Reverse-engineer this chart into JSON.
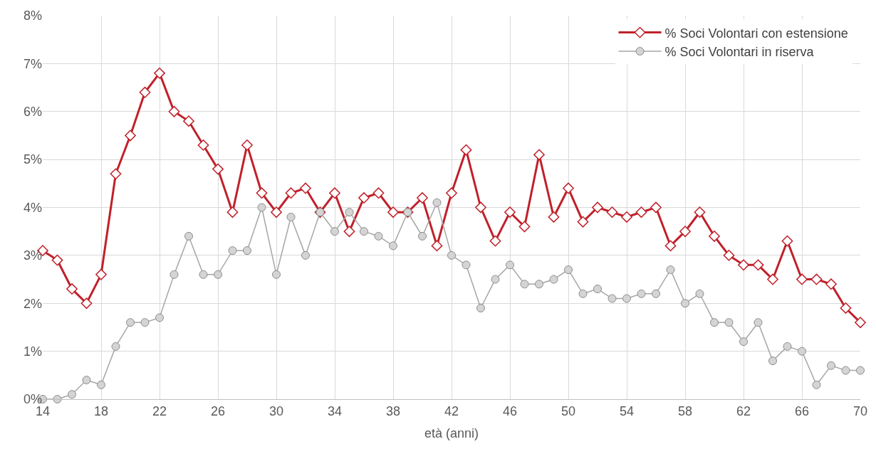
{
  "chart_data": {
    "type": "line",
    "xlabel": "età (anni)",
    "x": [
      14,
      15,
      16,
      17,
      18,
      19,
      20,
      21,
      22,
      23,
      24,
      25,
      26,
      27,
      28,
      29,
      30,
      31,
      32,
      33,
      34,
      35,
      36,
      37,
      38,
      39,
      40,
      41,
      42,
      43,
      44,
      45,
      46,
      47,
      48,
      49,
      50,
      51,
      52,
      53,
      54,
      55,
      56,
      57,
      58,
      59,
      60,
      61,
      62,
      63,
      64,
      65,
      66,
      67,
      68,
      69,
      70
    ],
    "series": [
      {
        "name": "% Soci Volontari con estensione",
        "color": "#c0202a",
        "marker": "diamond",
        "values": [
          3.1,
          2.9,
          2.3,
          2.0,
          2.6,
          4.7,
          5.5,
          6.4,
          6.8,
          6.0,
          5.8,
          5.3,
          4.8,
          3.9,
          5.3,
          4.3,
          3.9,
          4.3,
          4.4,
          3.9,
          4.3,
          3.5,
          4.2,
          4.3,
          3.9,
          3.9,
          4.2,
          3.2,
          4.3,
          5.2,
          4.0,
          3.3,
          3.9,
          3.6,
          5.1,
          3.8,
          4.4,
          3.7,
          4.0,
          3.9,
          3.8,
          3.9,
          4.0,
          3.2,
          3.5,
          3.9,
          3.4,
          3.0,
          2.8,
          2.8,
          2.5,
          3.3,
          2.5,
          2.5,
          2.4,
          1.9,
          1.6
        ]
      },
      {
        "name": "% Soci Volontari in riserva",
        "color": "#a6a6a6",
        "marker": "circle",
        "values": [
          0.0,
          0.0,
          0.1,
          0.4,
          0.3,
          1.1,
          1.6,
          1.6,
          1.7,
          2.6,
          3.4,
          2.6,
          2.6,
          3.1,
          3.1,
          4.0,
          2.6,
          3.8,
          3.0,
          3.9,
          3.5,
          3.9,
          3.5,
          3.4,
          3.2,
          3.9,
          3.4,
          4.1,
          3.0,
          2.8,
          1.9,
          2.5,
          2.8,
          2.4,
          2.4,
          2.5,
          2.7,
          2.2,
          2.3,
          2.1,
          2.1,
          2.2,
          2.2,
          2.7,
          2.0,
          2.2,
          1.6,
          1.6,
          1.2,
          1.6,
          0.8,
          1.1,
          1.0,
          0.3,
          0.7,
          0.6,
          0.6
        ]
      }
    ],
    "xlim": [
      14,
      70
    ],
    "xticks": [
      14,
      18,
      22,
      26,
      30,
      34,
      38,
      42,
      46,
      50,
      54,
      58,
      62,
      66,
      70
    ],
    "ylim": [
      0,
      8
    ],
    "yticks": [
      {
        "value": 0,
        "label": "0%"
      },
      {
        "value": 1,
        "label": "1%"
      },
      {
        "value": 2,
        "label": "2%"
      },
      {
        "value": 3,
        "label": "3%"
      },
      {
        "value": 4,
        "label": "4%"
      },
      {
        "value": 5,
        "label": "5%"
      },
      {
        "value": 6,
        "label": "6%"
      },
      {
        "value": 7,
        "label": "7%"
      },
      {
        "value": 8,
        "label": "8%"
      }
    ],
    "grid": true,
    "legend": "top right"
  }
}
